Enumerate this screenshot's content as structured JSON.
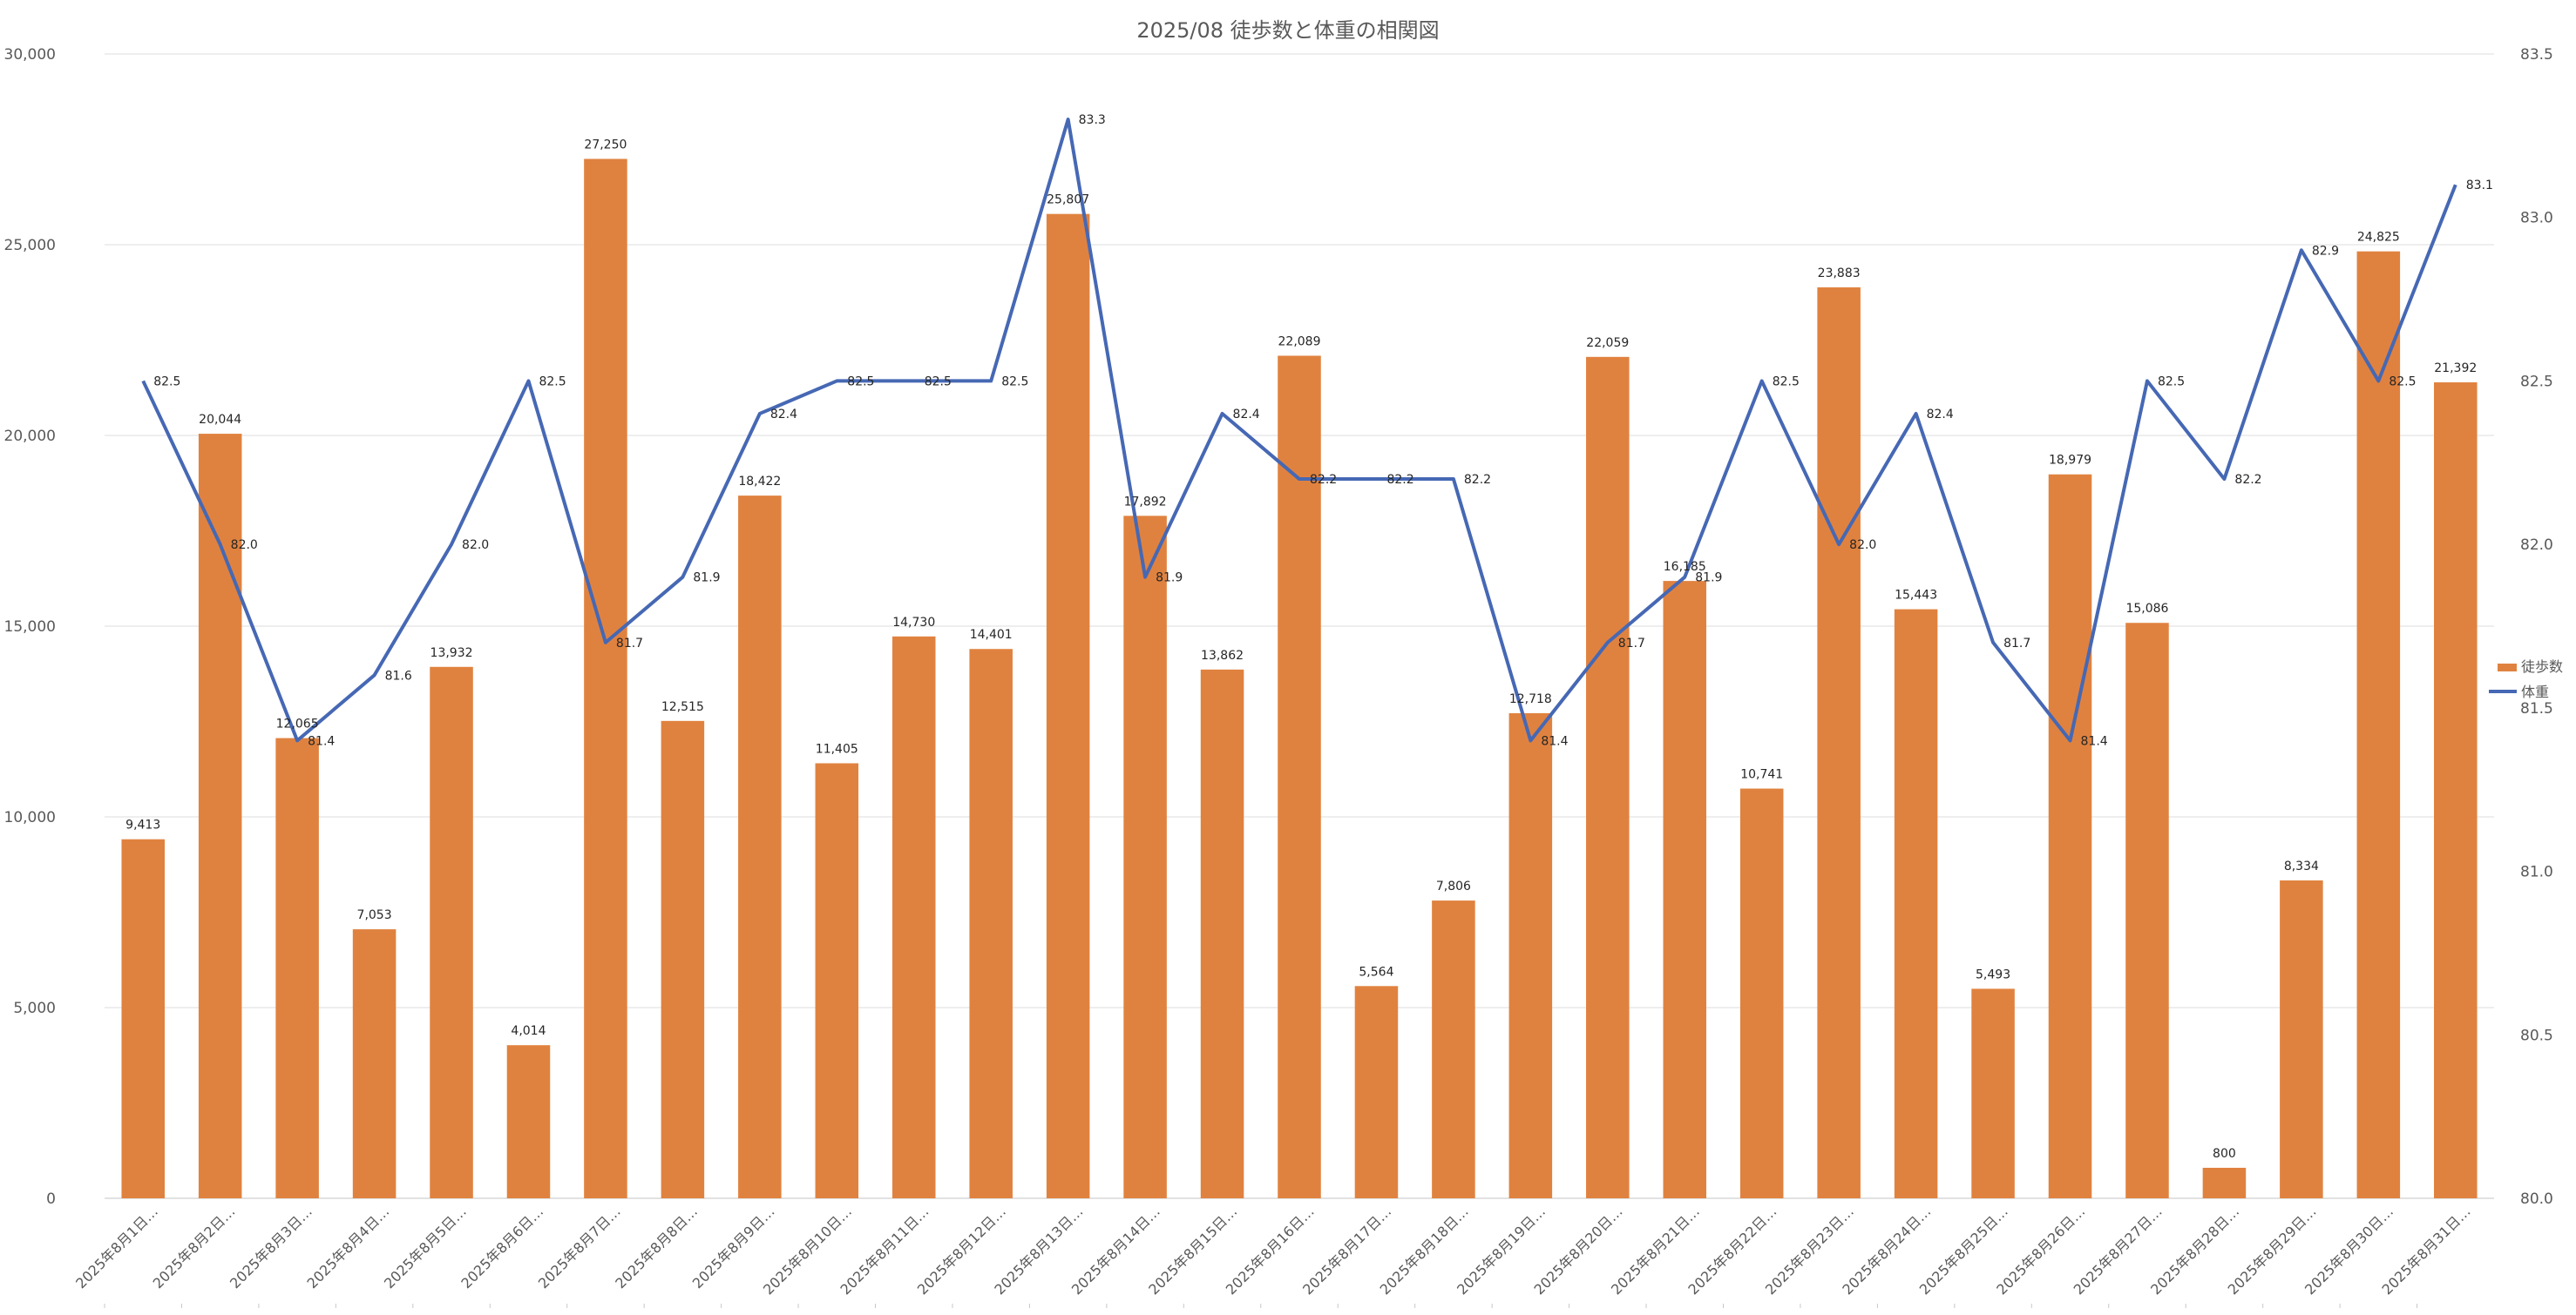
{
  "chart_data": {
    "type": "bar+line",
    "title": "2025/08 徒歩数と体重の相関図",
    "categories": [
      "2025年8月1日…",
      "2025年8月2日…",
      "2025年8月3日…",
      "2025年8月4日…",
      "2025年8月5日…",
      "2025年8月6日…",
      "2025年8月7日…",
      "2025年8月8日…",
      "2025年8月9日…",
      "2025年8月10日…",
      "2025年8月11日…",
      "2025年8月12日…",
      "2025年8月13日…",
      "2025年8月14日…",
      "2025年8月15日…",
      "2025年8月16日…",
      "2025年8月17日…",
      "2025年8月18日…",
      "2025年8月19日…",
      "2025年8月20日…",
      "2025年8月21日…",
      "2025年8月22日…",
      "2025年8月23日…",
      "2025年8月24日…",
      "2025年8月25日…",
      "2025年8月26日…",
      "2025年8月27日…",
      "2025年8月28日…",
      "2025年8月29日…",
      "2025年8月30日…",
      "2025年8月31日…"
    ],
    "series": [
      {
        "name": "徒歩数",
        "type": "bar",
        "axis": "left",
        "color": "#E0823F",
        "values": [
          9413,
          20044,
          12065,
          7053,
          13932,
          4014,
          27250,
          12515,
          18422,
          11405,
          14730,
          14401,
          25807,
          17892,
          13862,
          22089,
          5564,
          7806,
          12718,
          22059,
          16185,
          10741,
          23883,
          15443,
          5493,
          18979,
          15086,
          800,
          8334,
          24825,
          21392
        ],
        "labels": [
          "9,413",
          "20,044",
          "12,065",
          "7,053",
          "13,932",
          "4,014",
          "27,250",
          "12,515",
          "18,422",
          "11,405",
          "14,730",
          "14,401",
          "25,807",
          "17,892",
          "13,862",
          "22,089",
          "5,564",
          "7,806",
          "12,718",
          "22,059",
          "16,185",
          "10,741",
          "23,883",
          "15,443",
          "5,493",
          "18,979",
          "15,086",
          "800",
          "8,334",
          "24,825",
          "21,392"
        ]
      },
      {
        "name": "体重",
        "type": "line",
        "axis": "right",
        "color": "#4668B4",
        "values": [
          82.5,
          82.0,
          81.4,
          81.6,
          82.0,
          82.5,
          81.7,
          81.9,
          82.4,
          82.5,
          82.5,
          82.5,
          83.3,
          81.9,
          82.4,
          82.2,
          82.2,
          82.2,
          81.4,
          81.7,
          81.9,
          82.5,
          82.0,
          82.4,
          81.7,
          81.4,
          82.5,
          82.2,
          82.9,
          82.5,
          83.1
        ],
        "labels": [
          "82.5",
          "82.0",
          "81.4",
          "81.6",
          "82.0",
          "82.5",
          "81.7",
          "81.9",
          "82.4",
          "82.5",
          "82.5",
          "82.5",
          "83.3",
          "81.9",
          "82.4",
          "82.2",
          "82.2",
          "82.2",
          "81.4",
          "81.7",
          "81.9",
          "82.5",
          "82.0",
          "82.4",
          "81.7",
          "81.4",
          "82.5",
          "82.2",
          "82.9",
          "82.5",
          "83.1"
        ]
      }
    ],
    "y_left": {
      "min": 0,
      "max": 30000,
      "ticks": [
        0,
        5000,
        10000,
        15000,
        20000,
        25000,
        30000
      ],
      "tick_labels": [
        "0",
        "5,000",
        "10,000",
        "15,000",
        "20,000",
        "25,000",
        "30,000"
      ]
    },
    "y_right": {
      "min": 80.0,
      "max": 83.5,
      "ticks": [
        80.0,
        80.5,
        81.0,
        81.5,
        82.0,
        82.5,
        83.0,
        83.5
      ],
      "tick_labels": [
        "80.0",
        "80.5",
        "81.0",
        "81.5",
        "82.0",
        "82.5",
        "83.0",
        "83.5"
      ]
    },
    "grid": true,
    "legend": {
      "position": "right",
      "entries": [
        "徒歩数",
        "体重"
      ]
    }
  }
}
